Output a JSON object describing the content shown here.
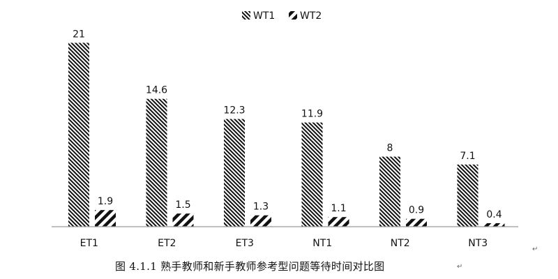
{
  "chart_data": {
    "type": "bar",
    "categories": [
      "ET1",
      "ET2",
      "ET3",
      "NT1",
      "NT2",
      "NT3"
    ],
    "series": [
      {
        "name": "WT1",
        "values": [
          21,
          14.6,
          12.3,
          11.9,
          8,
          7.1
        ],
        "pattern": "dense-diagonal-hatch",
        "color": "#111111"
      },
      {
        "name": "WT2",
        "values": [
          1.9,
          1.5,
          1.3,
          1.1,
          0.9,
          0.4
        ],
        "pattern": "wide-diagonal-stripes",
        "color": "#111111"
      }
    ],
    "data_labels": true,
    "legend_position": "top-center",
    "grid": false,
    "ylim": [
      0,
      23.5
    ]
  },
  "caption": {
    "text": "图 4.1.1 熟手教师和新手教师参考型问题等待时间对比图"
  },
  "paragraph_mark": "↵"
}
